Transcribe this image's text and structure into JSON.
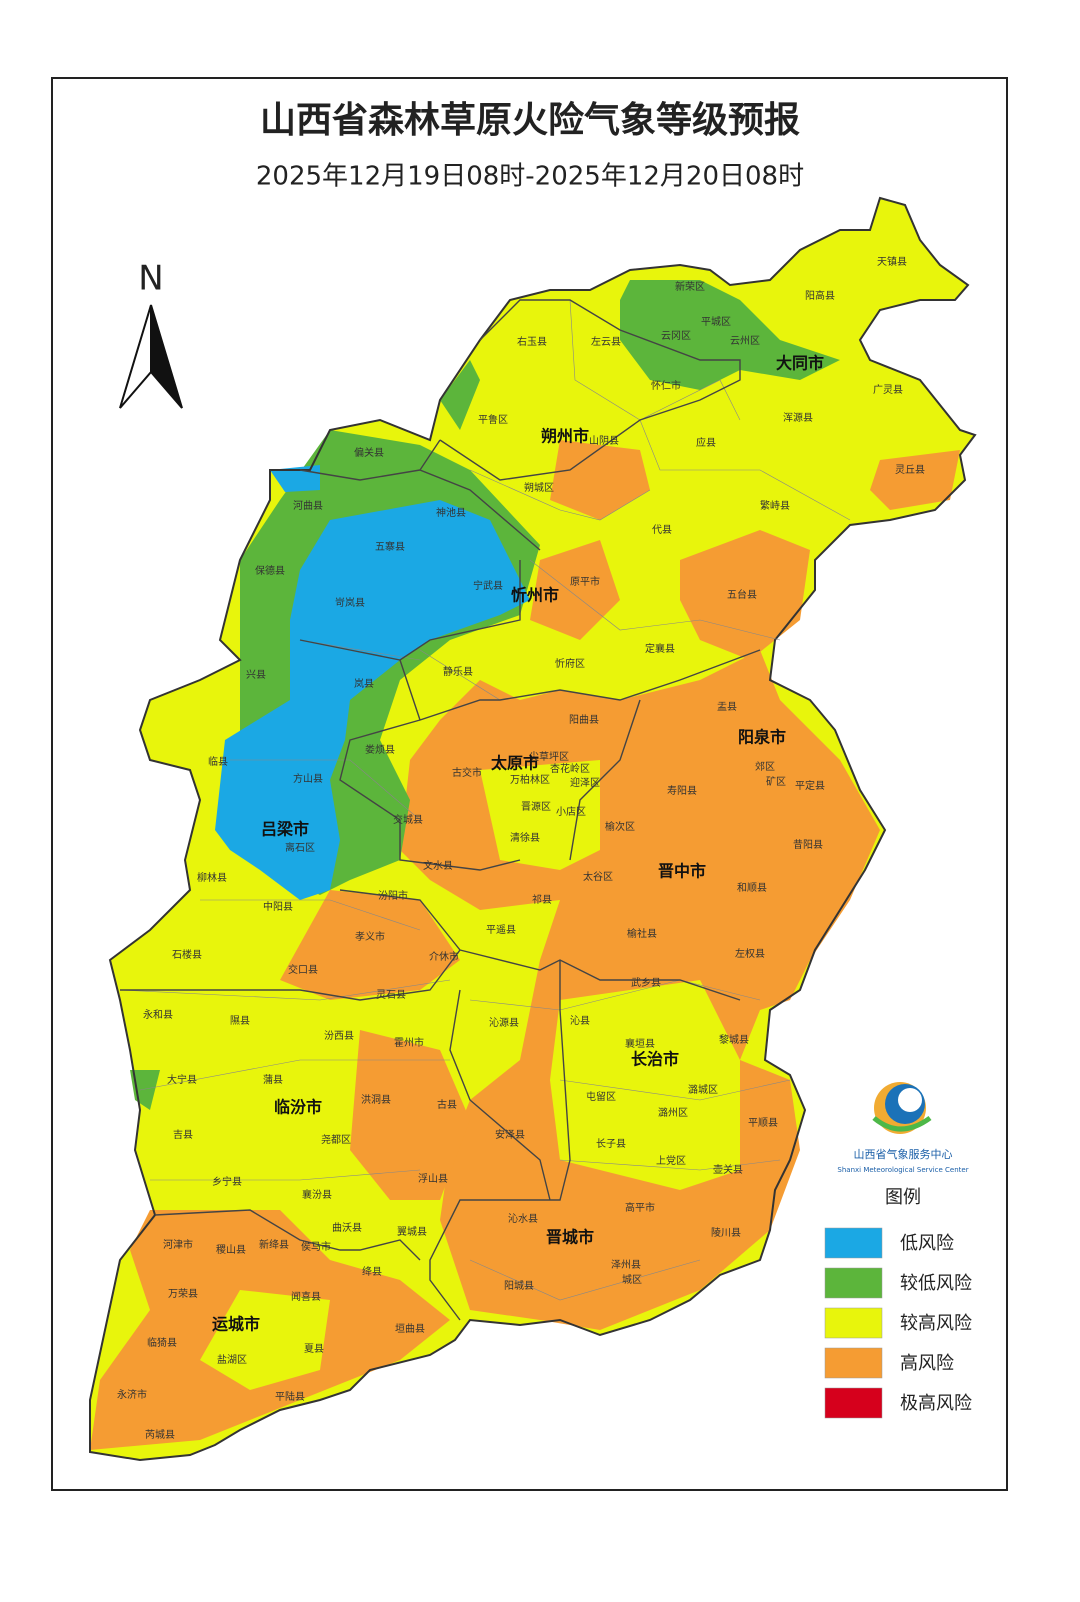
{
  "header": {
    "title": "山西省森林草原火险气象等级预报",
    "subtitle": "2025年12月19日08时-2025年12月20日08时"
  },
  "compass": "N",
  "cities": [
    "大同市",
    "朔州市",
    "忻州市",
    "太原市",
    "阳泉市",
    "吕梁市",
    "晋中市",
    "长治市",
    "临汾市",
    "晋城市",
    "运城市"
  ],
  "counties": [
    "天镇县",
    "阳高县",
    "新荣区",
    "平城区",
    "云冈区",
    "云州区",
    "右玉县",
    "左云县",
    "广灵县",
    "怀仁市",
    "浑源县",
    "平鲁区",
    "山阴县",
    "应县",
    "灵丘县",
    "偏关县",
    "朔城区",
    "繁峙县",
    "河曲县",
    "神池县",
    "代县",
    "五寨县",
    "保德县",
    "宁武县",
    "原平市",
    "岢岚县",
    "五台县",
    "兴县",
    "静乐县",
    "忻府区",
    "定襄县",
    "岚县",
    "盂县",
    "阳曲县",
    "娄烦县",
    "临县",
    "尖草坪区",
    "古交市",
    "杏花岭区",
    "万柏林区",
    "迎泽区",
    "方山县",
    "郊区",
    "矿区",
    "平定县",
    "寿阳县",
    "晋源区",
    "小店区",
    "交城县",
    "清徐县",
    "榆次区",
    "离石区",
    "昔阳县",
    "文水县",
    "柳林县",
    "太谷区",
    "和顺县",
    "汾阳市",
    "中阳县",
    "祁县",
    "孝义市",
    "平遥县",
    "榆社县",
    "石楼县",
    "介休市",
    "左权县",
    "交口县",
    "武乡县",
    "永和县",
    "灵石县",
    "隰县",
    "沁县",
    "沁源县",
    "汾西县",
    "襄垣县",
    "黎城县",
    "霍州市",
    "大宁县",
    "蒲县",
    "潞城区",
    "洪洞县",
    "古县",
    "屯留区",
    "平顺县",
    "潞州区",
    "吉县",
    "尧都区",
    "安泽县",
    "长子县",
    "上党区",
    "壶关县",
    "乡宁县",
    "浮山县",
    "襄汾县",
    "高平市",
    "沁水县",
    "曲沃县",
    "翼城县",
    "陵川县",
    "河津市",
    "稷山县",
    "新绛县",
    "侯马市",
    "绛县",
    "城区",
    "泽州县",
    "阳城县",
    "万荣县",
    "闻喜县",
    "垣曲县",
    "临猗县",
    "夏县",
    "盐湖区",
    "永济市",
    "平陆县",
    "芮城县"
  ],
  "logo": {
    "name": "山西省气象服务中心",
    "english": "Shanxi Meteorological Service Center"
  },
  "legend": {
    "title": "图例",
    "items": [
      {
        "label": "低风险",
        "color": "#1ba8e4"
      },
      {
        "label": "较低风险",
        "color": "#5cb53b"
      },
      {
        "label": "较高风险",
        "color": "#e8f50c"
      },
      {
        "label": "高风险",
        "color": "#f59c33"
      },
      {
        "label": "极高风险",
        "color": "#d6001c"
      }
    ]
  }
}
